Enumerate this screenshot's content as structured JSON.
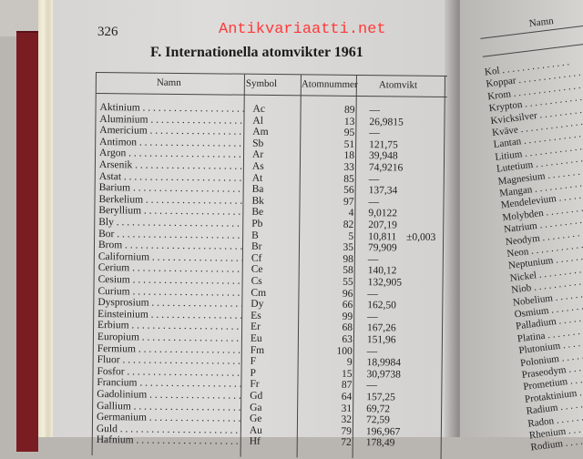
{
  "page_number": "326",
  "title": "F. Internationella atomvikter 1961",
  "watermark": "Antikvariaatti.net",
  "columns": [
    "Namn",
    "Symbol",
    "Atomnummer",
    "Atomvikt"
  ],
  "rows": [
    {
      "name": "Aktinium",
      "symbol": "Ac",
      "number": "89",
      "weight": "—"
    },
    {
      "name": "Aluminium",
      "symbol": "Al",
      "number": "13",
      "weight": "26,9815"
    },
    {
      "name": "Americium",
      "symbol": "Am",
      "number": "95",
      "weight": "—"
    },
    {
      "name": "Antimon",
      "symbol": "Sb",
      "number": "51",
      "weight": "121,75"
    },
    {
      "name": "Argon",
      "symbol": "Ar",
      "number": "18",
      "weight": "39,948"
    },
    {
      "name": "Arsenik",
      "symbol": "As",
      "number": "33",
      "weight": "74,9216"
    },
    {
      "name": "Astat",
      "symbol": "At",
      "number": "85",
      "weight": "—"
    },
    {
      "name": "Barium",
      "symbol": "Ba",
      "number": "56",
      "weight": "137,34"
    },
    {
      "name": "Berkelium",
      "symbol": "Bk",
      "number": "97",
      "weight": "—"
    },
    {
      "name": "Beryllium",
      "symbol": "Be",
      "number": "4",
      "weight": "9,0122"
    },
    {
      "name": "Bly",
      "symbol": "Pb",
      "number": "82",
      "weight": "207,19"
    },
    {
      "name": "Bor",
      "symbol": "B",
      "number": "5",
      "weight": "10,811",
      "tolerance": "±0,003"
    },
    {
      "name": "Brom",
      "symbol": "Br",
      "number": "35",
      "weight": "79,909"
    },
    {
      "name": "Californium",
      "symbol": "Cf",
      "number": "98",
      "weight": "—"
    },
    {
      "name": "Cerium",
      "symbol": "Ce",
      "number": "58",
      "weight": "140,12"
    },
    {
      "name": "Cesium",
      "symbol": "Cs",
      "number": "55",
      "weight": "132,905"
    },
    {
      "name": "Curium",
      "symbol": "Cm",
      "number": "96",
      "weight": "—"
    },
    {
      "name": "Dysprosium",
      "symbol": "Dy",
      "number": "66",
      "weight": "162,50"
    },
    {
      "name": "Einsteinium",
      "symbol": "Es",
      "number": "99",
      "weight": "—"
    },
    {
      "name": "Erbium",
      "symbol": "Er",
      "number": "68",
      "weight": "167,26"
    },
    {
      "name": "Europium",
      "symbol": "Eu",
      "number": "63",
      "weight": "151,96"
    },
    {
      "name": "Fermium",
      "symbol": "Fm",
      "number": "100",
      "weight": "—"
    },
    {
      "name": "Fluor",
      "symbol": "F",
      "number": "9",
      "weight": "18,9984"
    },
    {
      "name": "Fosfor",
      "symbol": "P",
      "number": "15",
      "weight": "30,9738"
    },
    {
      "name": "Francium",
      "symbol": "Fr",
      "number": "87",
      "weight": "—"
    },
    {
      "name": "Gadolinium",
      "symbol": "Gd",
      "number": "64",
      "weight": "157,25"
    },
    {
      "name": "Gallium",
      "symbol": "Ga",
      "number": "31",
      "weight": "69,72"
    },
    {
      "name": "Germanium",
      "symbol": "Ge",
      "number": "32",
      "weight": "72,59"
    },
    {
      "name": "Guld",
      "symbol": "Au",
      "number": "79",
      "weight": "196,967"
    },
    {
      "name": "Hafnium",
      "symbol": "Hf",
      "number": "72",
      "weight": "178,49"
    }
  ],
  "right_page": {
    "column": "Namn",
    "names": [
      "Kol",
      "Koppar",
      "Krom",
      "Krypton",
      "Kvicksilver",
      "Kväve",
      "Lantan",
      "Litium",
      "Lutetium",
      "Magnesium",
      "Mangan",
      "Mendelevium",
      "Molybden",
      "Natrium",
      "Neodym",
      "Neon",
      "Neptunium",
      "Nickel",
      "Niob",
      "Nobelium",
      "Osmium",
      "Palladium",
      "Platina",
      "Plutonium",
      "Polonium",
      "Praseodym",
      "Prometium",
      "Protaktinium",
      "Radium",
      "Radon",
      "Rhenium",
      "Rodium"
    ]
  }
}
